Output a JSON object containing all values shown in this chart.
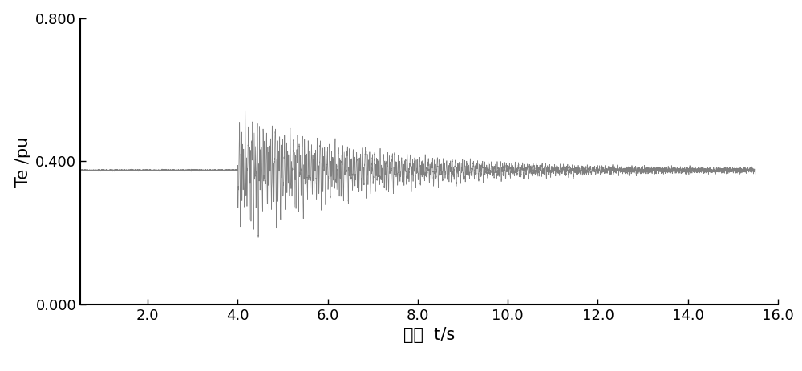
{
  "xlabel": "时间  t/s",
  "ylabel": "Te /pu",
  "xlim": [
    0.5,
    16.0
  ],
  "ylim": [
    0.0,
    0.8
  ],
  "xticks": [
    2.0,
    4.0,
    6.0,
    8.0,
    10.0,
    12.0,
    14.0,
    16.0
  ],
  "xtick_labels": [
    "2.0",
    "4.0",
    "6.0",
    "8.0",
    "10.0",
    "12.0",
    "14.0",
    "16.0"
  ],
  "yticks": [
    0.0,
    0.4,
    0.8
  ],
  "ytick_labels": [
    "0.000",
    "0.400",
    "0.800"
  ],
  "line_color": "#808080",
  "line_width": 0.5,
  "background_color": "#ffffff",
  "steady_value": 0.375,
  "event_time": 4.0,
  "osc_freq_base": 25.0,
  "osc_decay": 0.35,
  "osc_amplitude": 0.22,
  "total_time": 15.5,
  "dt": 0.001,
  "font_size_ticks": 13,
  "font_size_label": 15
}
